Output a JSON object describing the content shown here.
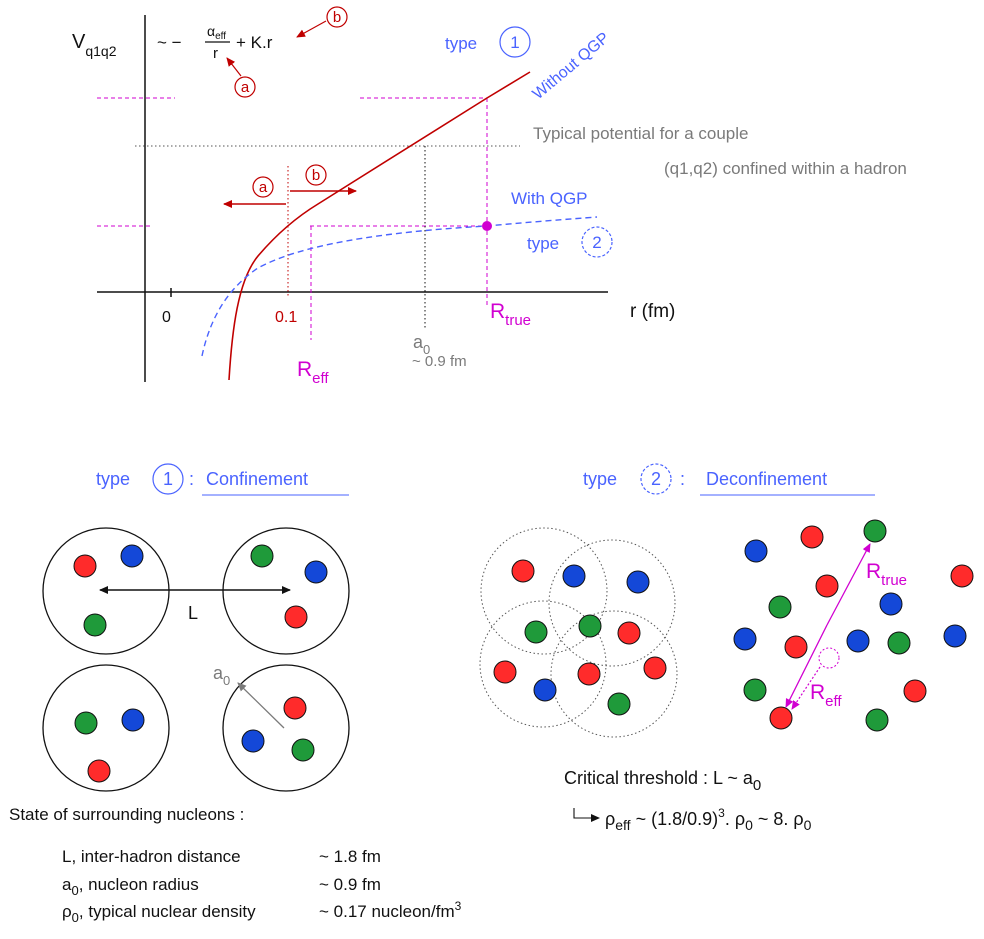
{
  "graph": {
    "y_axis_label": "V",
    "y_axis_sub": "q1q2",
    "formula": {
      "prefix": "~ −",
      "alpha": "α",
      "alpha_sub": "eff",
      "denominator": "r",
      "suffix": "+ K.r",
      "marker_a": "a",
      "marker_b": "b"
    },
    "x_axis_label": "r (fm)",
    "tick_zero": "0",
    "tick_01": "0.1",
    "r_eff_label": "R",
    "r_eff_sub": "eff",
    "r_true_label": "R",
    "r_true_sub": "true",
    "a0_label": "a",
    "a0_sub": "0",
    "a0_value": "~ 0.9 fm",
    "type1_text": "type",
    "type1_num": "1",
    "type2_text": "type",
    "type2_num": "2",
    "without_qgp": "Without QGP",
    "with_qgp": "With QGP",
    "typical_line1": "Typical potential for a couple",
    "typical_line2": "(q1,q2) confined within a hadron",
    "arrow_a": "a",
    "arrow_b": "b"
  },
  "confinement": {
    "title_type": "type",
    "title_num": "1",
    "title_colon": ":",
    "title_word": "Confinement",
    "distance_label": "L",
    "radius_label": "a",
    "radius_sub": "0"
  },
  "deconfinement": {
    "title_type": "type",
    "title_num": "2",
    "title_colon": ":",
    "title_word": "Deconfinement",
    "r_true_label": "R",
    "r_true_sub": "true",
    "r_eff_label": "R",
    "r_eff_sub": "eff",
    "critical_text": "Critical threshold :  L ~ a",
    "critical_sub": "0",
    "rho_eff": "ρ",
    "rho_eff_sub": "eff",
    "rho_eff_mid": " ~ (1.8/0.9)",
    "rho_eff_exp": "3",
    "rho_eff_tail": ". ρ",
    "rho_eff_sub0": "0",
    "rho_eff_end": " ~ 8. ρ",
    "rho_eff_sub0b": "0"
  },
  "nucleons": {
    "heading": "State of surrounding nucleons :",
    "rows": [
      {
        "name": "L, inter-hadron distance",
        "value": "~ 1.8 fm"
      },
      {
        "name_main": "a",
        "name_sub": "0",
        "name_rest": ", nucleon radius",
        "value": "~ 0.9 fm"
      },
      {
        "name_main": "ρ",
        "name_sub": "0",
        "name_rest": ", typical nuclear density",
        "value_main": "~ 0.17 nucleon/fm",
        "value_sup": "3"
      }
    ]
  },
  "colors": {
    "red_curve": "#c00000",
    "blue_curve": "#4a63ff",
    "magenta": "#d100d1",
    "quark_red": "#ff2b2b",
    "quark_green": "#1f9a3a",
    "quark_blue": "#1448d8"
  }
}
